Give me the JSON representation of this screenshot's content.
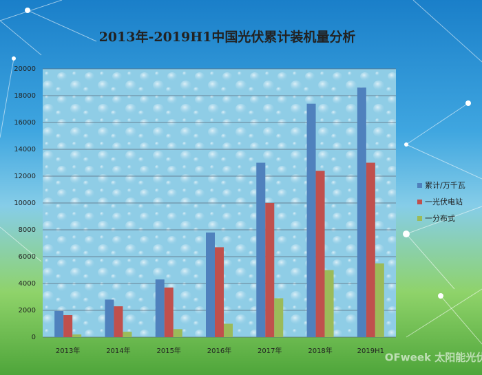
{
  "chart_data": {
    "type": "bar",
    "title": "2013年-2019H1中国光伏累计装机量分析",
    "categories": [
      "2013年",
      "2014年",
      "2015年",
      "2016年",
      "2017年",
      "2018年",
      "2019H1"
    ],
    "series": [
      {
        "name": "累计/万千瓦",
        "color": "#4f81bd",
        "values": [
          1950,
          2800,
          4300,
          7800,
          13000,
          17400,
          18600
        ]
      },
      {
        "name": "一光伏电站",
        "color": "#c0504d",
        "values": [
          1640,
          2300,
          3700,
          6700,
          10000,
          12400,
          13000
        ]
      },
      {
        "name": "一分布式",
        "color": "#9bbb59",
        "values": [
          200,
          400,
          600,
          1000,
          2900,
          5000,
          5500
        ]
      }
    ],
    "ylim": [
      0,
      20000
    ],
    "yticks": [
      0,
      2000,
      4000,
      6000,
      8000,
      10000,
      12000,
      14000,
      16000,
      18000,
      20000
    ],
    "grid": true,
    "legend": "right",
    "watermark": "OFweek 太阳能光伏网"
  }
}
